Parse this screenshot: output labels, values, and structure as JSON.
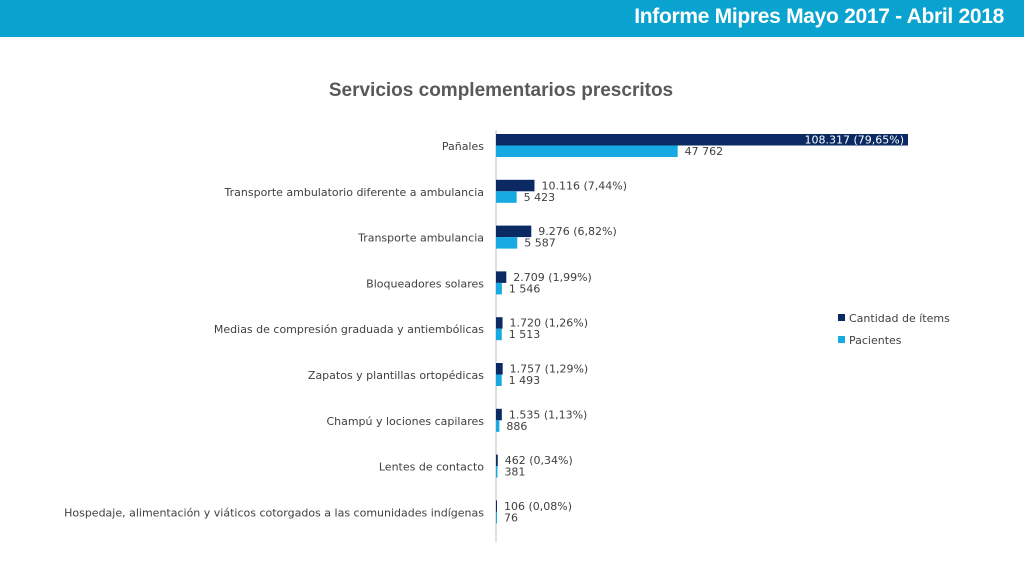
{
  "header": {
    "title": "Informe Mipres Mayo 2017 - Abril 2018"
  },
  "colors": {
    "header": "#0aa3cf",
    "items": "#0b2a63",
    "patients": "#17a9e1",
    "axis": "#bfbfbf"
  },
  "chart_data": {
    "type": "bar",
    "orientation": "horizontal",
    "title": "Servicios complementarios prescritos",
    "categories": [
      "Pañales",
      "Transporte ambulatorio diferente a ambulancia",
      "Transporte ambulancia",
      "Bloqueadores solares",
      "Medias de compresión graduada y antiembólicas",
      "Zapatos y plantillas ortopédicas",
      "Champú y lociones capilares",
      "Lentes de contacto",
      "Hospedaje, alimentación y viáticos cotorgados a las comunidades indígenas"
    ],
    "series": [
      {
        "name": "Cantidad de ítems",
        "values": [
          108317,
          10116,
          9276,
          2709,
          1720,
          1757,
          1535,
          462,
          106
        ],
        "labels": [
          "108.317 (79,65%)",
          "10.116 (7,44%)",
          "9.276 (6,82%)",
          "2.709 (1,99%)",
          "1.720 (1,26%)",
          "1.757 (1,29%)",
          "1.535 (1,13%)",
          "462 (0,34%)",
          "106 (0,08%)"
        ]
      },
      {
        "name": "Pacientes",
        "values": [
          47762,
          5423,
          5587,
          1546,
          1513,
          1493,
          886,
          381,
          76
        ],
        "labels": [
          "47 762",
          "5 423",
          "5 587",
          "1 546",
          "1 513",
          "1 493",
          "886",
          "381",
          "76"
        ]
      }
    ],
    "legend": "right",
    "grid": false
  }
}
